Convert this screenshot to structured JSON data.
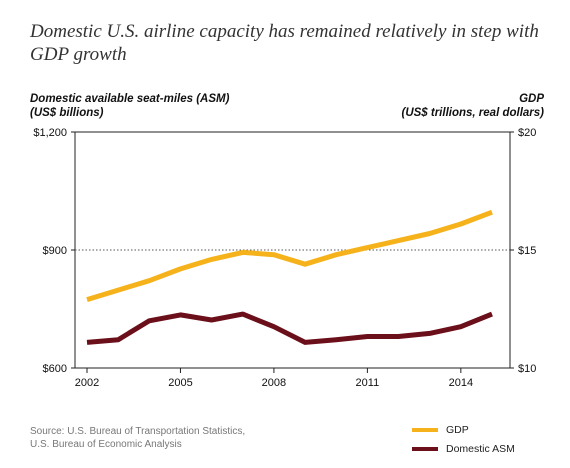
{
  "colors": {
    "gdp": "#f5b21b",
    "asm": "#6b0f1a",
    "axis": "#222222",
    "grid": "#555555"
  },
  "title": "Domestic U.S. airline capacity has remained relatively in step with GDP growth",
  "left_axis": {
    "line1": "Domestic available seat-miles (ASM)",
    "line2": "(US$ billions)"
  },
  "right_axis": {
    "line1": "GDP",
    "line2": "(US$ trillions, real dollars)"
  },
  "source": {
    "line1": "Source: U.S. Bureau of Transportation Statistics,",
    "line2": "U.S. Bureau of Economic Analysis"
  },
  "legend": [
    {
      "label": "GDP",
      "color": "#f5b21b"
    },
    {
      "label": "Domestic ASM",
      "color": "#6b0f1a"
    }
  ],
  "chart_data": {
    "type": "line",
    "x": [
      2002,
      2003,
      2004,
      2005,
      2006,
      2007,
      2008,
      2009,
      2010,
      2011,
      2012,
      2013,
      2014,
      2015
    ],
    "xlim": [
      2002,
      2015
    ],
    "x_ticks": [
      2002,
      2005,
      2008,
      2011,
      2014
    ],
    "x_tick_labels": [
      "2002",
      "2005",
      "2008",
      "2011",
      "2014"
    ],
    "y_left": {
      "lim": [
        600,
        1200
      ],
      "ticks": [
        600,
        900,
        1200
      ],
      "tick_labels": [
        "$600",
        "$900",
        "$1,200"
      ]
    },
    "y_right": {
      "lim": [
        10,
        20
      ],
      "ticks": [
        10,
        15,
        20
      ],
      "tick_labels": [
        "$10",
        "$15",
        "$20"
      ]
    },
    "grid": "dotted line at middle tick",
    "series": [
      {
        "name": "GDP",
        "axis": "right",
        "color": "#f5b21b",
        "values": [
          12.9,
          13.3,
          13.7,
          14.2,
          14.6,
          14.9,
          14.8,
          14.4,
          14.8,
          15.1,
          15.4,
          15.7,
          16.1,
          16.6
        ]
      },
      {
        "name": "Domestic ASM",
        "axis": "left",
        "color": "#6b0f1a",
        "values": [
          665,
          672,
          720,
          735,
          722,
          737,
          705,
          665,
          672,
          680,
          680,
          688,
          705,
          737
        ]
      }
    ]
  }
}
